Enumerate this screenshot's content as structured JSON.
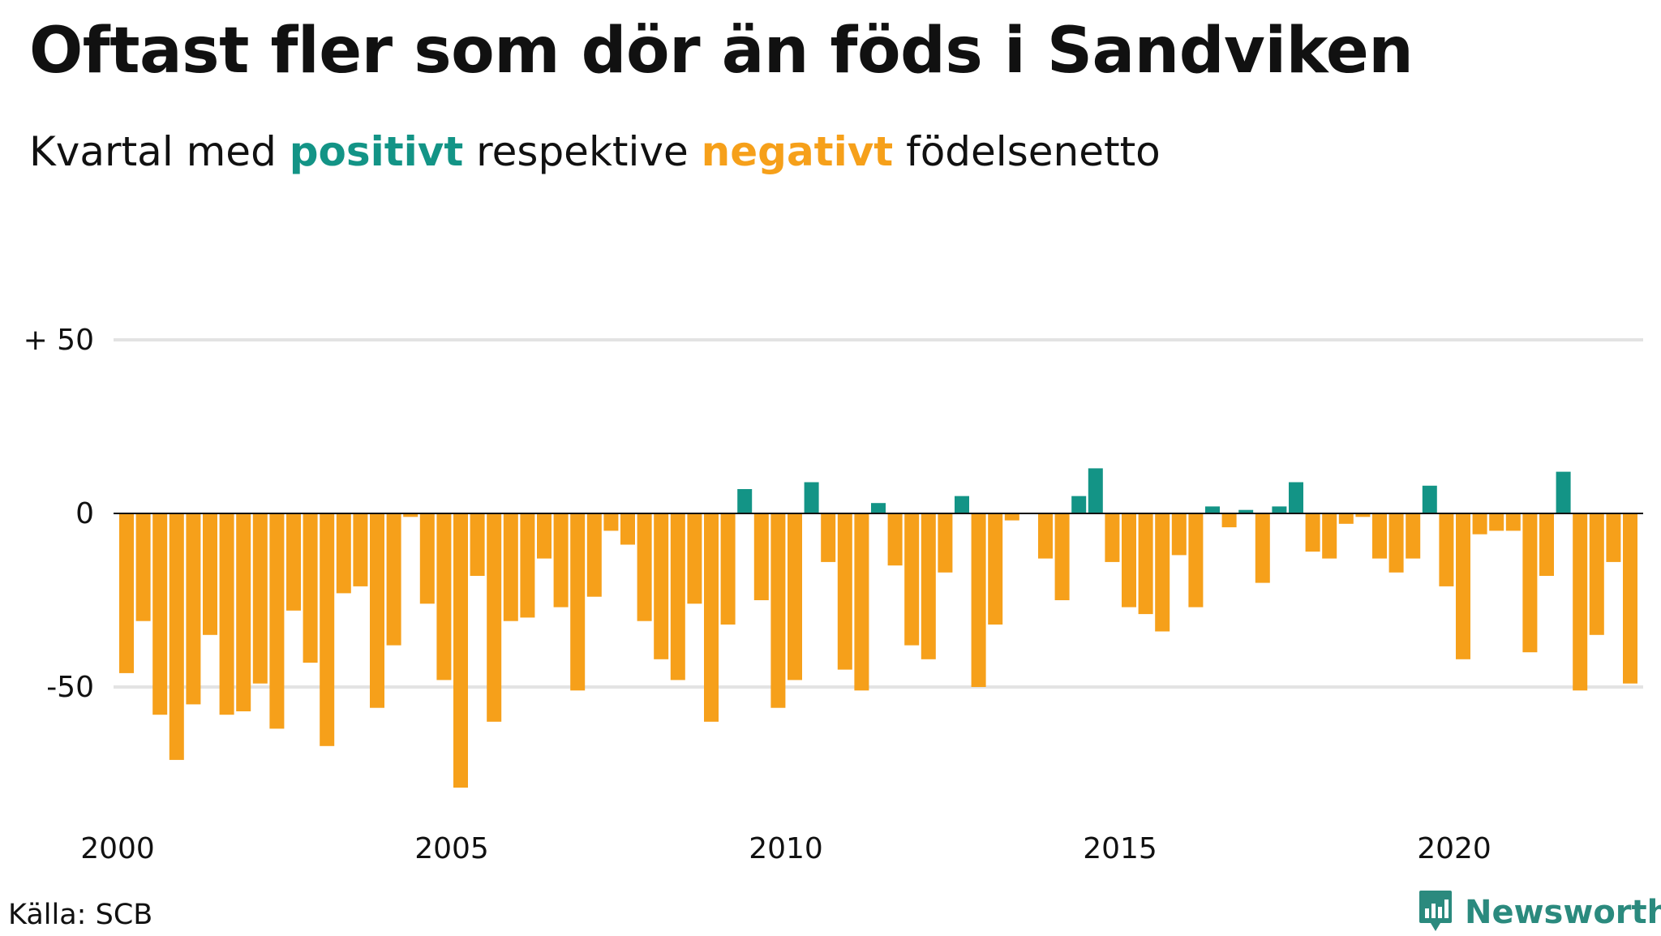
{
  "title": "Oftast fler som dör än föds i Sandviken",
  "subtitle": {
    "before": "Kvartal med ",
    "positive_word": "positivt",
    "middle": " respektive ",
    "negative_word": "negativt",
    "after": " födelsenetto"
  },
  "source": "Källa: SCB",
  "brand": {
    "name": "Newsworthy",
    "icon": "bar-chart-speech-bubble-icon"
  },
  "colors": {
    "positive": "#139486",
    "negative": "#f6a01a",
    "grid": "#e3e3e3",
    "axis": "#111111"
  },
  "chart_data": {
    "type": "bar",
    "x_start": "2000 Q1",
    "x_unit": "quarter",
    "ylim": [
      -80,
      55
    ],
    "y_ticks": [
      {
        "value": 50,
        "label": "+ 50"
      },
      {
        "value": 0,
        "label": "0"
      },
      {
        "value": -50,
        "label": "-50"
      }
    ],
    "x_ticks": [
      "2000",
      "2005",
      "2010",
      "2015",
      "2020"
    ],
    "grid": true,
    "values": [
      -46,
      -31,
      -58,
      -71,
      -55,
      -35,
      -58,
      -57,
      -49,
      -62,
      -28,
      -43,
      -67,
      -23,
      -21,
      -56,
      -38,
      -1,
      -26,
      -48,
      -79,
      -18,
      -60,
      -31,
      -30,
      -13,
      -27,
      -51,
      -24,
      -5,
      -9,
      -31,
      -42,
      -48,
      -26,
      -60,
      -32,
      7,
      -25,
      -56,
      -48,
      9,
      -14,
      -45,
      -51,
      3,
      -15,
      -38,
      -42,
      -17,
      5,
      -50,
      -32,
      -2,
      0,
      -13,
      -25,
      5,
      13,
      -14,
      -27,
      -29,
      -34,
      -12,
      -27,
      2,
      -4,
      1,
      -20,
      2,
      9,
      -11,
      -13,
      -3,
      -1,
      -13,
      -17,
      -13,
      8,
      -21,
      -42,
      -6,
      -5,
      -5,
      -40,
      -18,
      12,
      -51,
      -35,
      -14,
      -49
    ]
  }
}
